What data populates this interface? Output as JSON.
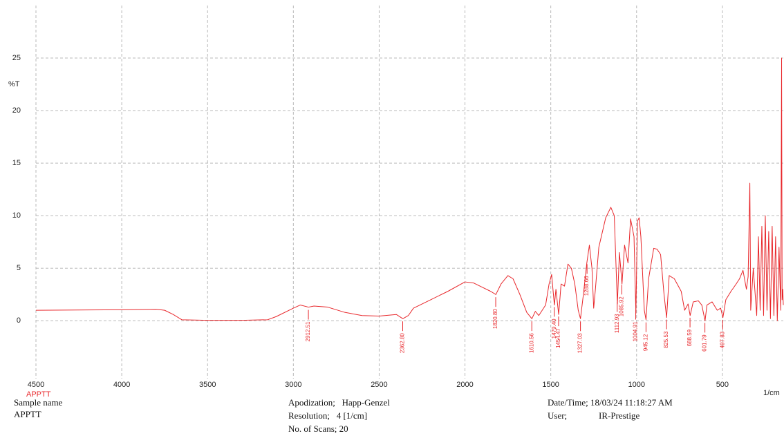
{
  "chart_data": {
    "type": "line",
    "x_label": "1/cm",
    "y_label": "%T",
    "xlim": [
      4500,
      145
    ],
    "ylim": [
      -5.5,
      30
    ],
    "xticks": [
      4500,
      4000,
      3500,
      3000,
      2500,
      2000,
      1500,
      1000,
      500
    ],
    "yticks": [
      0,
      5,
      10,
      15,
      20,
      25
    ],
    "grid": true,
    "x": [
      4500,
      4000,
      3800,
      3750,
      3700,
      3650,
      3500,
      3300,
      3150,
      3100,
      3000,
      2960,
      2912,
      2880,
      2800,
      2700,
      2600,
      2500,
      2400,
      2362,
      2330,
      2300,
      2200,
      2100,
      2000,
      1950,
      1900,
      1850,
      1820,
      1790,
      1750,
      1720,
      1680,
      1640,
      1610,
      1590,
      1570,
      1530,
      1510,
      1495,
      1479,
      1470,
      1454,
      1440,
      1420,
      1400,
      1380,
      1360,
      1340,
      1327,
      1310,
      1290,
      1275,
      1260,
      1250,
      1240,
      1220,
      1180,
      1150,
      1130,
      1112,
      1100,
      1085,
      1070,
      1050,
      1035,
      1015,
      1004,
      995,
      985,
      975,
      955,
      945,
      930,
      900,
      880,
      860,
      840,
      825,
      810,
      780,
      740,
      720,
      700,
      688,
      670,
      640,
      620,
      601,
      590,
      560,
      530,
      510,
      497,
      480,
      450,
      420,
      400,
      380,
      360,
      350,
      340,
      335,
      320,
      300,
      290,
      280,
      270,
      260,
      250,
      240,
      230,
      220,
      210,
      200,
      190,
      180,
      170,
      160,
      155,
      152,
      148,
      145
    ],
    "series": [
      {
        "name": "APPTT",
        "color": "#e8262a",
        "values": [
          1.0,
          1.05,
          1.1,
          1.0,
          0.6,
          0.1,
          0.05,
          0.05,
          0.1,
          0.4,
          1.2,
          1.5,
          1.3,
          1.4,
          1.3,
          0.8,
          0.5,
          0.45,
          0.6,
          0.2,
          0.5,
          1.2,
          2.0,
          2.8,
          3.7,
          3.6,
          3.2,
          2.8,
          2.5,
          3.5,
          4.3,
          4.0,
          2.5,
          0.8,
          0.2,
          0.9,
          0.5,
          1.5,
          3.5,
          4.4,
          1.5,
          3.0,
          0.6,
          3.5,
          3.3,
          5.4,
          5.0,
          3.5,
          1.0,
          0.2,
          2.5,
          5.5,
          7.2,
          5.0,
          1.2,
          3.0,
          7.0,
          9.8,
          10.8,
          10.0,
          1.6,
          6.5,
          3.5,
          7.2,
          5.5,
          9.7,
          8.0,
          0.7,
          9.5,
          9.8,
          8.0,
          1.0,
          0.1,
          4.0,
          6.9,
          6.8,
          6.3,
          2.5,
          0.3,
          4.3,
          4.0,
          2.8,
          1.0,
          1.6,
          0.5,
          1.8,
          1.9,
          1.5,
          0.0,
          1.5,
          1.8,
          1.0,
          1.2,
          0.3,
          2.0,
          2.8,
          3.5,
          4.0,
          4.8,
          3.0,
          4.2,
          13.1,
          1.0,
          5.0,
          0.5,
          8.0,
          1.0,
          9.0,
          0.5,
          10.0,
          1.0,
          8.5,
          0.2,
          9.0,
          0.5,
          8.0,
          0.0,
          7.0,
          1.0,
          25.0,
          2.0,
          3.0,
          1.5
        ]
      }
    ],
    "peaks": [
      2912.51,
      {
        "value": 2362.8,
        "label": "2362.80"
      },
      {
        "value": 1820.8,
        "label": "1820.80"
      },
      1610.56,
      {
        "value": 1479.4,
        "label": "1479.40"
      },
      1454.47,
      1327.03,
      1288.66,
      1112.93,
      1085.92,
      1004.91,
      945.12,
      825.53,
      688.59,
      601.79,
      497.83
    ]
  },
  "footer": {
    "sample_label": "Sample name",
    "sample_name": "APPTT",
    "apodization": "Apodization;   Happ-Genzel",
    "resolution": "Resolution;   4 [1/cm]",
    "scans": "No. of Scans; 20",
    "datetime": "Date/Time; 18/03/24 11:18:27 AM",
    "user_label": "User;",
    "user": "IR-Prestige"
  }
}
